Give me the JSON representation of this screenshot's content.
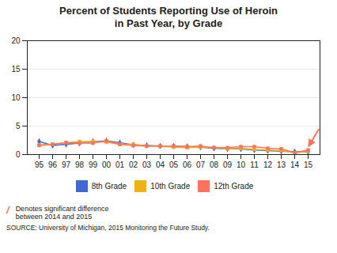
{
  "chart_data": {
    "type": "line",
    "title": "Percent of Students Reporting Use of Heroin\nin Past Year, by Grade",
    "categories": [
      "95",
      "96",
      "97",
      "98",
      "99",
      "00",
      "01",
      "02",
      "03",
      "04",
      "05",
      "06",
      "07",
      "08",
      "09",
      "10",
      "11",
      "12",
      "13",
      "14",
      "15"
    ],
    "series": [
      {
        "name": "8th Grade",
        "marker": "diamond",
        "values": [
          2.3,
          1.6,
          1.8,
          2.0,
          2.3,
          2.4,
          2.1,
          1.7,
          1.6,
          1.5,
          1.5,
          1.4,
          1.3,
          1.1,
          1.0,
          1.0,
          0.8,
          0.7,
          0.6,
          0.5,
          0.5
        ]
      },
      {
        "name": "10th Grade",
        "marker": "square",
        "values": [
          1.7,
          1.8,
          2.1,
          2.3,
          2.3,
          2.2,
          1.8,
          1.8,
          1.5,
          1.5,
          1.3,
          1.2,
          1.3,
          1.2,
          1.0,
          1.1,
          0.9,
          0.8,
          0.7,
          0.3,
          0.6
        ]
      },
      {
        "name": "12th Grade",
        "marker": "square",
        "values": [
          1.6,
          1.8,
          2.1,
          2.0,
          2.0,
          2.4,
          1.8,
          1.6,
          1.5,
          1.5,
          1.5,
          1.4,
          1.5,
          1.2,
          1.2,
          1.4,
          1.4,
          1.1,
          1.0,
          0.3,
          0.8
        ]
      }
    ],
    "ylim": [
      0,
      20
    ],
    "yticks": [
      0,
      5,
      10,
      15,
      20
    ],
    "grid": true,
    "legend": "bottom",
    "annotations": [
      "/",
      "Denotes significant difference\nbetween 2014 and 2015",
      "SOURCE: University of Michigan, 2015 Monitoring the Future Study."
    ]
  }
}
